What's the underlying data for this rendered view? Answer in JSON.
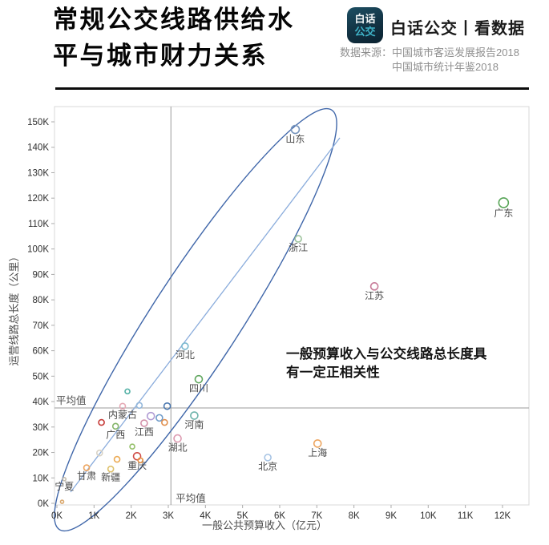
{
  "header": {
    "title": "常规公交线路供给水\n平与城市财力关系",
    "logo_line1": "白话",
    "logo_line2": "公交",
    "brand": "白话公交丨看数据",
    "source_line1": "数据来源：中国城市客运发展报告2018",
    "source_line2": "中国城市统计年鉴2018"
  },
  "chart_data": {
    "type": "scatter",
    "title": "常规公交线路供给水平与城市财力关系",
    "xlabel": "一般公共预算收入（亿元）",
    "ylabel": "运营线路总长度（公里）",
    "x_ticks": [
      "0K",
      "1K",
      "2K",
      "3K",
      "4K",
      "5K",
      "6K",
      "7K",
      "8K",
      "9K",
      "10K",
      "11K",
      "12K"
    ],
    "y_ticks": [
      "0K",
      "10K",
      "20K",
      "30K",
      "40K",
      "50K",
      "60K",
      "70K",
      "80K",
      "90K",
      "100K",
      "110K",
      "120K",
      "130K",
      "140K",
      "150K"
    ],
    "xlim": [
      0,
      12.78
    ],
    "ylim": [
      0,
      156.4
    ],
    "grid": false,
    "avg_x": {
      "label": "平均值",
      "value": 3.07
    },
    "avg_y": {
      "label": "平均值",
      "value": 37.5
    },
    "annotation": "一般预算收入与公交线路总长度具\n有一定正相关性",
    "colors": {
      "ellipse": "#3f66a9",
      "trend": "#8aacdc",
      "avg_line": "#9b9b9b",
      "border": "#d8d8d8",
      "tick_text": "#2e2e2e",
      "axis_title": "#4d4d4d",
      "point_label": "#4a4a4a"
    },
    "points": [
      {
        "name": "山东",
        "x": 6.42,
        "y": 147,
        "r": 5,
        "color": "#7795bd"
      },
      {
        "name": "广东",
        "x": 12.03,
        "y": 118.2,
        "r": 6,
        "color": "#58a557"
      },
      {
        "name": "浙江",
        "x": 6.5,
        "y": 104,
        "r": 4,
        "color": "#9dc39c"
      },
      {
        "name": "江苏",
        "x": 8.55,
        "y": 85.3,
        "r": 4.5,
        "color": "#c87c99"
      },
      {
        "name": "河北",
        "x": 3.45,
        "y": 61.8,
        "r": 4,
        "color": "#79b8cf"
      },
      {
        "name": "四川",
        "x": 3.82,
        "y": 48.8,
        "r": 4.5,
        "color": "#61a75f"
      },
      {
        "name": "河南",
        "x": 3.7,
        "y": 34.5,
        "r": 4.5,
        "color": "#6db3ab"
      },
      {
        "name": "湖北",
        "x": 3.25,
        "y": 25.5,
        "r": 4.5,
        "color": "#dd9cb1"
      },
      {
        "name": "上海",
        "x": 7.02,
        "y": 23.5,
        "r": 4.5,
        "color": "#eda55f"
      },
      {
        "name": "北京",
        "x": 5.68,
        "y": 18,
        "r": 4,
        "color": "#a7c4e4"
      },
      {
        "name": "重庆",
        "x": 2.16,
        "y": 18.5,
        "r": 4.5,
        "color": "#cf4a45"
      },
      {
        "name": "内蒙古",
        "x": 1.77,
        "y": 38.2,
        "r": 3.5,
        "color": "#e5a9b5"
      },
      {
        "name": "江西",
        "x": 2.35,
        "y": 31.5,
        "r": 4,
        "color": "#d391a9"
      },
      {
        "name": "广西",
        "x": 1.58,
        "y": 30.3,
        "r": 3.5,
        "color": "#85b56a"
      },
      {
        "name": "甘肃",
        "x": 0.8,
        "y": 14,
        "r": 3.5,
        "color": "#eda55f"
      },
      {
        "name": "新疆",
        "x": 1.45,
        "y": 13.5,
        "r": 3.5,
        "color": "#dec06a"
      },
      {
        "name": "宁夏",
        "x": 0.2,
        "y": 9.5,
        "r": 2,
        "color": "#c3bcae"
      },
      {
        "name": "",
        "x": 1.9,
        "y": 44,
        "r": 3,
        "color": "#52b0a5"
      },
      {
        "name": "",
        "x": 2.22,
        "y": 38.5,
        "r": 3.5,
        "color": "#93b7da"
      },
      {
        "name": "",
        "x": 2.97,
        "y": 38.2,
        "r": 4,
        "color": "#4d79b0"
      },
      {
        "name": "",
        "x": 1.2,
        "y": 31.8,
        "r": 3.5,
        "color": "#c63b38"
      },
      {
        "name": "",
        "x": 2.53,
        "y": 34.3,
        "r": 4.5,
        "color": "#b19cd4"
      },
      {
        "name": "",
        "x": 2.76,
        "y": 33.6,
        "r": 4,
        "color": "#6f9bc9"
      },
      {
        "name": "",
        "x": 2.9,
        "y": 31.8,
        "r": 3.5,
        "color": "#e08f4e"
      },
      {
        "name": "",
        "x": 2.03,
        "y": 22.3,
        "r": 3,
        "color": "#93bf68"
      },
      {
        "name": "",
        "x": 1.15,
        "y": 19.8,
        "r": 3.5,
        "color": "#d9d2c4"
      },
      {
        "name": "",
        "x": 1.62,
        "y": 17.3,
        "r": 3.5,
        "color": "#ecab55"
      },
      {
        "name": "",
        "x": 2.25,
        "y": 16.9,
        "r": 3,
        "color": "#e79040"
      },
      {
        "name": "",
        "x": 0.14,
        "y": 0.6,
        "r": 2,
        "color": "#daa96f"
      }
    ]
  }
}
